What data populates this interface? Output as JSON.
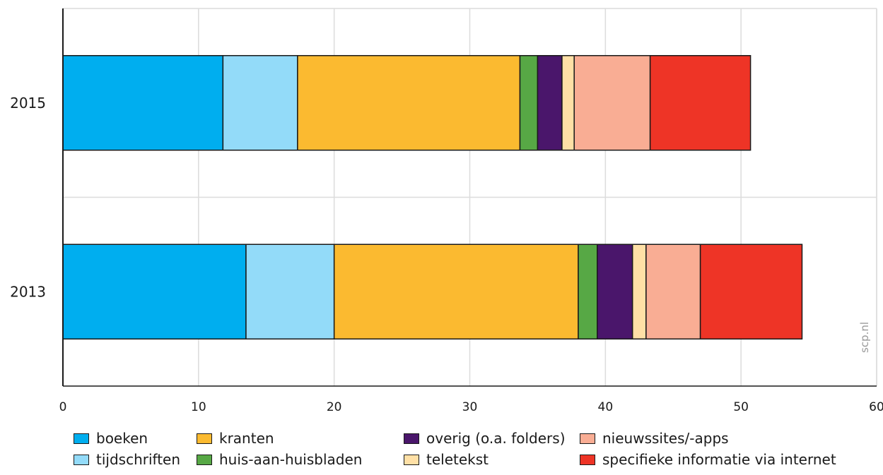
{
  "chart_data": {
    "type": "bar",
    "orientation": "horizontal",
    "stacked": true,
    "categories": [
      "2015",
      "2013"
    ],
    "series": [
      {
        "name": "boeken",
        "color": "#00aeef",
        "values": [
          11.8,
          13.5
        ]
      },
      {
        "name": "tijdschriften",
        "color": "#93dbf9",
        "values": [
          5.5,
          6.5
        ]
      },
      {
        "name": "kranten",
        "color": "#fbba30",
        "values": [
          16.4,
          18.0
        ]
      },
      {
        "name": "huis-aan-huisbladen",
        "color": "#57a845",
        "values": [
          1.3,
          1.4
        ]
      },
      {
        "name": "overig (o.a. folders)",
        "color": "#4a166b",
        "values": [
          1.8,
          2.6
        ]
      },
      {
        "name": "teletekst",
        "color": "#ffe0a6",
        "values": [
          0.9,
          1.0
        ]
      },
      {
        "name": "nieuwssites/-apps",
        "color": "#f9ad94",
        "values": [
          5.6,
          4.0
        ]
      },
      {
        "name": "specifieke informatie via internet",
        "color": "#ee3426",
        "values": [
          7.4,
          7.5
        ]
      }
    ],
    "xlim": [
      0,
      60
    ],
    "xticks": [
      "0",
      "10",
      "20",
      "30",
      "40",
      "50",
      "60"
    ],
    "grid": true,
    "legend_position": "bottom",
    "title": "",
    "xlabel": "",
    "ylabel": ""
  },
  "watermark": "scp.nl"
}
